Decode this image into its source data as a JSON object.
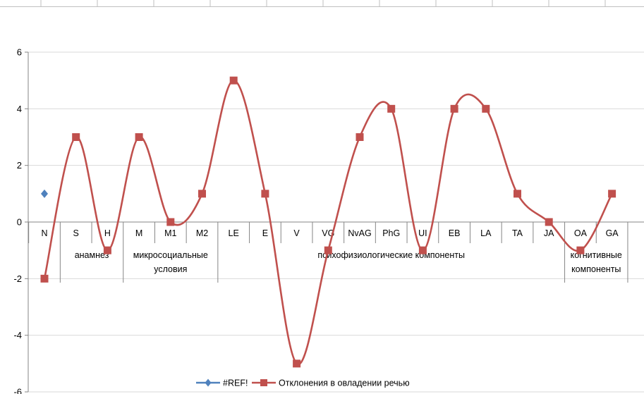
{
  "chart_data": {
    "type": "line",
    "categories": [
      "N",
      "S",
      "H",
      "M",
      "M1",
      "M2",
      "LE",
      "E",
      "V",
      "VG",
      "NvAG",
      "PhG",
      "UI",
      "EB",
      "LA",
      "TA",
      "JA",
      "OA",
      "GA"
    ],
    "groups": [
      {
        "label_lines": [
          "анамнез"
        ],
        "from": 1,
        "to": 2
      },
      {
        "label_lines": [
          "микросоциальные",
          "условия"
        ],
        "from": 3,
        "to": 5
      },
      {
        "label_lines": [
          "психофизиологические компоненты"
        ],
        "from": 6,
        "to": 16
      },
      {
        "label_lines": [
          "когнитивные",
          "компоненты"
        ],
        "from": 17,
        "to": 18
      }
    ],
    "yticks": [
      -6,
      -4,
      -2,
      0,
      2,
      4,
      6
    ],
    "ylim": [
      -6,
      6
    ],
    "grid": true,
    "legend_position": "bottom",
    "series": [
      {
        "name": "#REF!",
        "color": "#4f81bd",
        "marker": "diamond",
        "values": [
          1,
          null,
          null,
          null,
          null,
          null,
          null,
          null,
          null,
          null,
          null,
          null,
          null,
          null,
          null,
          null,
          null,
          null,
          null
        ]
      },
      {
        "name": "Отклонения в овладении речью",
        "color": "#c0504d",
        "marker": "square",
        "smooth": true,
        "values": [
          -2,
          3,
          -1,
          3,
          0,
          1,
          5,
          1,
          -5,
          -1,
          3,
          4,
          -1,
          4,
          4,
          1,
          0,
          -1,
          1
        ]
      }
    ]
  }
}
